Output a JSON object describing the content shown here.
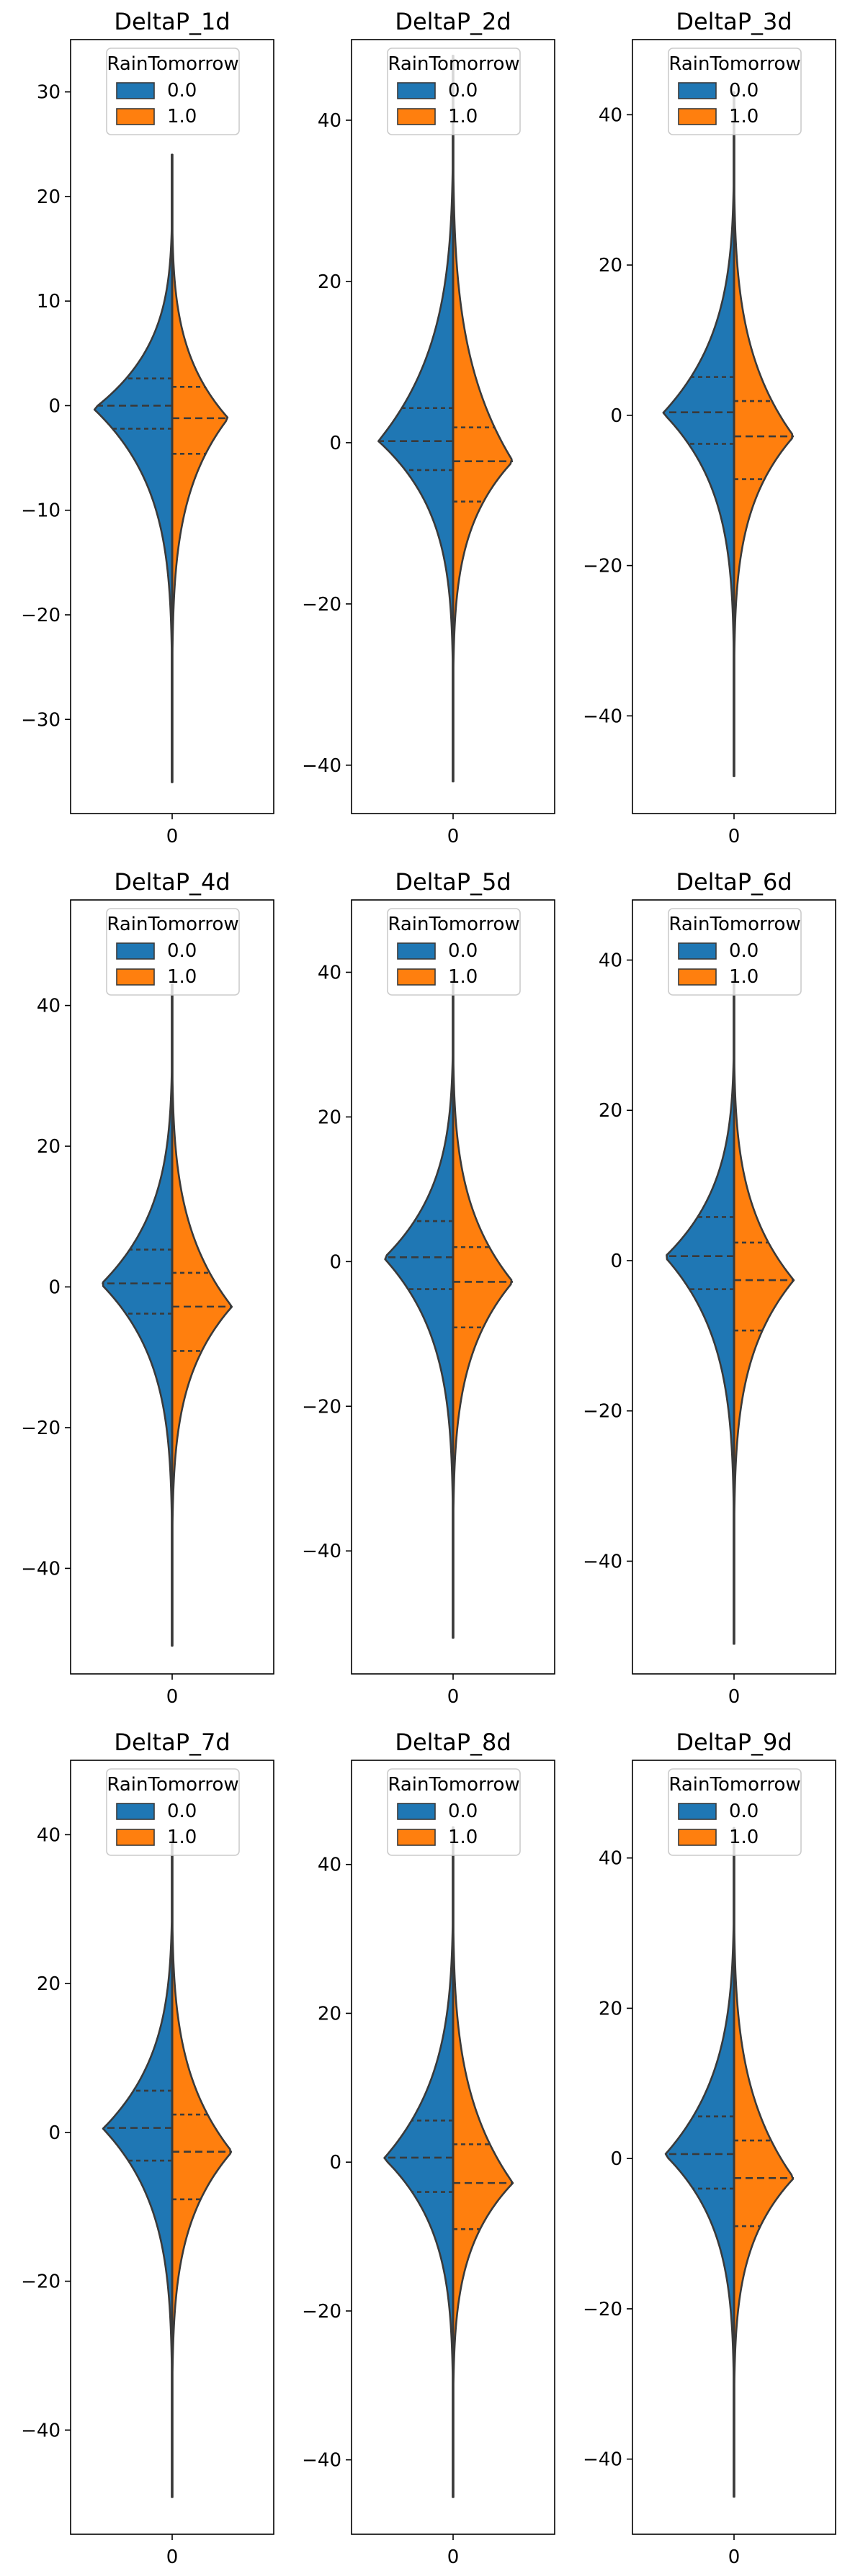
{
  "chart_data": [
    {
      "type": "violin",
      "title": "DeltaP_1d",
      "categories": [
        "0"
      ],
      "ylim": [
        -39,
        35
      ],
      "yticks": [
        -30,
        -20,
        -10,
        0,
        10,
        20,
        30
      ],
      "legend": {
        "title": "RainTomorrow",
        "placement": "top-center"
      },
      "series": [
        {
          "name": "0.0",
          "side": "left",
          "color": "#1f77b4",
          "y_min": -36,
          "y_max": 24,
          "q1": -2.2,
          "median": 0.0,
          "q3": 2.6,
          "mode": -0.3,
          "width": 0.42
        },
        {
          "name": "1.0",
          "side": "right",
          "color": "#ff7f0e",
          "y_min": -36,
          "y_max": 24,
          "q1": -4.6,
          "median": -1.2,
          "q3": 1.8,
          "mode": -1.2,
          "width": 0.3
        }
      ]
    },
    {
      "type": "violin",
      "title": "DeltaP_2d",
      "categories": [
        "0"
      ],
      "ylim": [
        -46,
        50
      ],
      "yticks": [
        -40,
        -20,
        0,
        20,
        40
      ],
      "legend": {
        "title": "RainTomorrow",
        "placement": "top-center"
      },
      "series": [
        {
          "name": "0.0",
          "side": "left",
          "color": "#1f77b4",
          "y_min": -42,
          "y_max": 48,
          "q1": -3.4,
          "median": 0.2,
          "q3": 4.3,
          "mode": 0.2,
          "width": 0.4
        },
        {
          "name": "1.0",
          "side": "right",
          "color": "#ff7f0e",
          "y_min": -42,
          "y_max": 48,
          "q1": -7.3,
          "median": -2.3,
          "q3": 1.9,
          "mode": -2.3,
          "width": 0.32
        }
      ]
    },
    {
      "type": "violin",
      "title": "DeltaP_3d",
      "categories": [
        "0"
      ],
      "ylim": [
        -53,
        50
      ],
      "yticks": [
        -40,
        -20,
        0,
        20,
        40
      ],
      "legend": {
        "title": "RainTomorrow",
        "placement": "top-center"
      },
      "series": [
        {
          "name": "0.0",
          "side": "left",
          "color": "#1f77b4",
          "y_min": -48,
          "y_max": 43,
          "q1": -3.8,
          "median": 0.4,
          "q3": 5.1,
          "mode": 0.3,
          "width": 0.38
        },
        {
          "name": "1.0",
          "side": "right",
          "color": "#ff7f0e",
          "y_min": -48,
          "y_max": 43,
          "q1": -8.5,
          "median": -2.8,
          "q3": 1.9,
          "mode": -2.8,
          "width": 0.32
        }
      ]
    },
    {
      "type": "violin",
      "title": "DeltaP_4d",
      "categories": [
        "0"
      ],
      "ylim": [
        -55,
        55
      ],
      "yticks": [
        -40,
        -20,
        0,
        20,
        40
      ],
      "legend": {
        "title": "RainTomorrow",
        "placement": "top-center"
      },
      "series": [
        {
          "name": "0.0",
          "side": "left",
          "color": "#1f77b4",
          "y_min": -51,
          "y_max": 43,
          "q1": -3.8,
          "median": 0.5,
          "q3": 5.3,
          "mode": 0.4,
          "width": 0.38
        },
        {
          "name": "1.0",
          "side": "right",
          "color": "#ff7f0e",
          "y_min": -51,
          "y_max": 43,
          "q1": -9.1,
          "median": -2.8,
          "q3": 2.0,
          "mode": -2.8,
          "width": 0.32
        }
      ]
    },
    {
      "type": "violin",
      "title": "DeltaP_5d",
      "categories": [
        "0"
      ],
      "ylim": [
        -57,
        50
      ],
      "yticks": [
        -40,
        -20,
        0,
        20,
        40
      ],
      "legend": {
        "title": "RainTomorrow",
        "placement": "top-center"
      },
      "series": [
        {
          "name": "0.0",
          "side": "left",
          "color": "#1f77b4",
          "y_min": -52,
          "y_max": 40,
          "q1": -3.8,
          "median": 0.6,
          "q3": 5.6,
          "mode": 0.5,
          "width": 0.37
        },
        {
          "name": "1.0",
          "side": "right",
          "color": "#ff7f0e",
          "y_min": -52,
          "y_max": 40,
          "q1": -9.1,
          "median": -2.8,
          "q3": 2.0,
          "mode": -2.8,
          "width": 0.32
        }
      ]
    },
    {
      "type": "violin",
      "title": "DeltaP_6d",
      "categories": [
        "0"
      ],
      "ylim": [
        -55,
        48
      ],
      "yticks": [
        -40,
        -20,
        0,
        20,
        40
      ],
      "legend": {
        "title": "RainTomorrow",
        "placement": "top-center"
      },
      "series": [
        {
          "name": "0.0",
          "side": "left",
          "color": "#1f77b4",
          "y_min": -51,
          "y_max": 38,
          "q1": -3.8,
          "median": 0.6,
          "q3": 5.8,
          "mode": 0.5,
          "width": 0.37
        },
        {
          "name": "1.0",
          "side": "right",
          "color": "#ff7f0e",
          "y_min": -51,
          "y_max": 38,
          "q1": -9.3,
          "median": -2.6,
          "q3": 2.4,
          "mode": -2.6,
          "width": 0.32
        }
      ]
    },
    {
      "type": "violin",
      "title": "DeltaP_7d",
      "categories": [
        "0"
      ],
      "ylim": [
        -54,
        50
      ],
      "yticks": [
        -40,
        -20,
        0,
        20,
        40
      ],
      "legend": {
        "title": "RainTomorrow",
        "placement": "top-center"
      },
      "series": [
        {
          "name": "0.0",
          "side": "left",
          "color": "#1f77b4",
          "y_min": -49,
          "y_max": 40,
          "q1": -3.8,
          "median": 0.6,
          "q3": 5.6,
          "mode": 0.5,
          "width": 0.37
        },
        {
          "name": "1.0",
          "side": "right",
          "color": "#ff7f0e",
          "y_min": -49,
          "y_max": 40,
          "q1": -9.0,
          "median": -2.6,
          "q3": 2.4,
          "mode": -2.6,
          "width": 0.32
        }
      ]
    },
    {
      "type": "violin",
      "title": "DeltaP_8d",
      "categories": [
        "0"
      ],
      "ylim": [
        -50,
        54
      ],
      "yticks": [
        -40,
        -20,
        0,
        20,
        40
      ],
      "legend": {
        "title": "RainTomorrow",
        "placement": "top-center"
      },
      "series": [
        {
          "name": "0.0",
          "side": "left",
          "color": "#1f77b4",
          "y_min": -45,
          "y_max": 45,
          "q1": -4.0,
          "median": 0.6,
          "q3": 5.6,
          "mode": 0.5,
          "width": 0.37
        },
        {
          "name": "1.0",
          "side": "right",
          "color": "#ff7f0e",
          "y_min": -45,
          "y_max": 45,
          "q1": -9.0,
          "median": -2.8,
          "q3": 2.4,
          "mode": -2.8,
          "width": 0.32
        }
      ]
    },
    {
      "type": "violin",
      "title": "DeltaP_9d",
      "categories": [
        "0"
      ],
      "ylim": [
        -50,
        53
      ],
      "yticks": [
        -40,
        -20,
        0,
        20,
        40
      ],
      "legend": {
        "title": "RainTomorrow",
        "placement": "top-center"
      },
      "series": [
        {
          "name": "0.0",
          "side": "left",
          "color": "#1f77b4",
          "y_min": -45,
          "y_max": 44,
          "q1": -4.0,
          "median": 0.6,
          "q3": 5.6,
          "mode": 0.5,
          "width": 0.37
        },
        {
          "name": "1.0",
          "side": "right",
          "color": "#ff7f0e",
          "y_min": -45,
          "y_max": 44,
          "q1": -9.0,
          "median": -2.6,
          "q3": 2.4,
          "mode": -2.6,
          "width": 0.32
        }
      ]
    }
  ]
}
